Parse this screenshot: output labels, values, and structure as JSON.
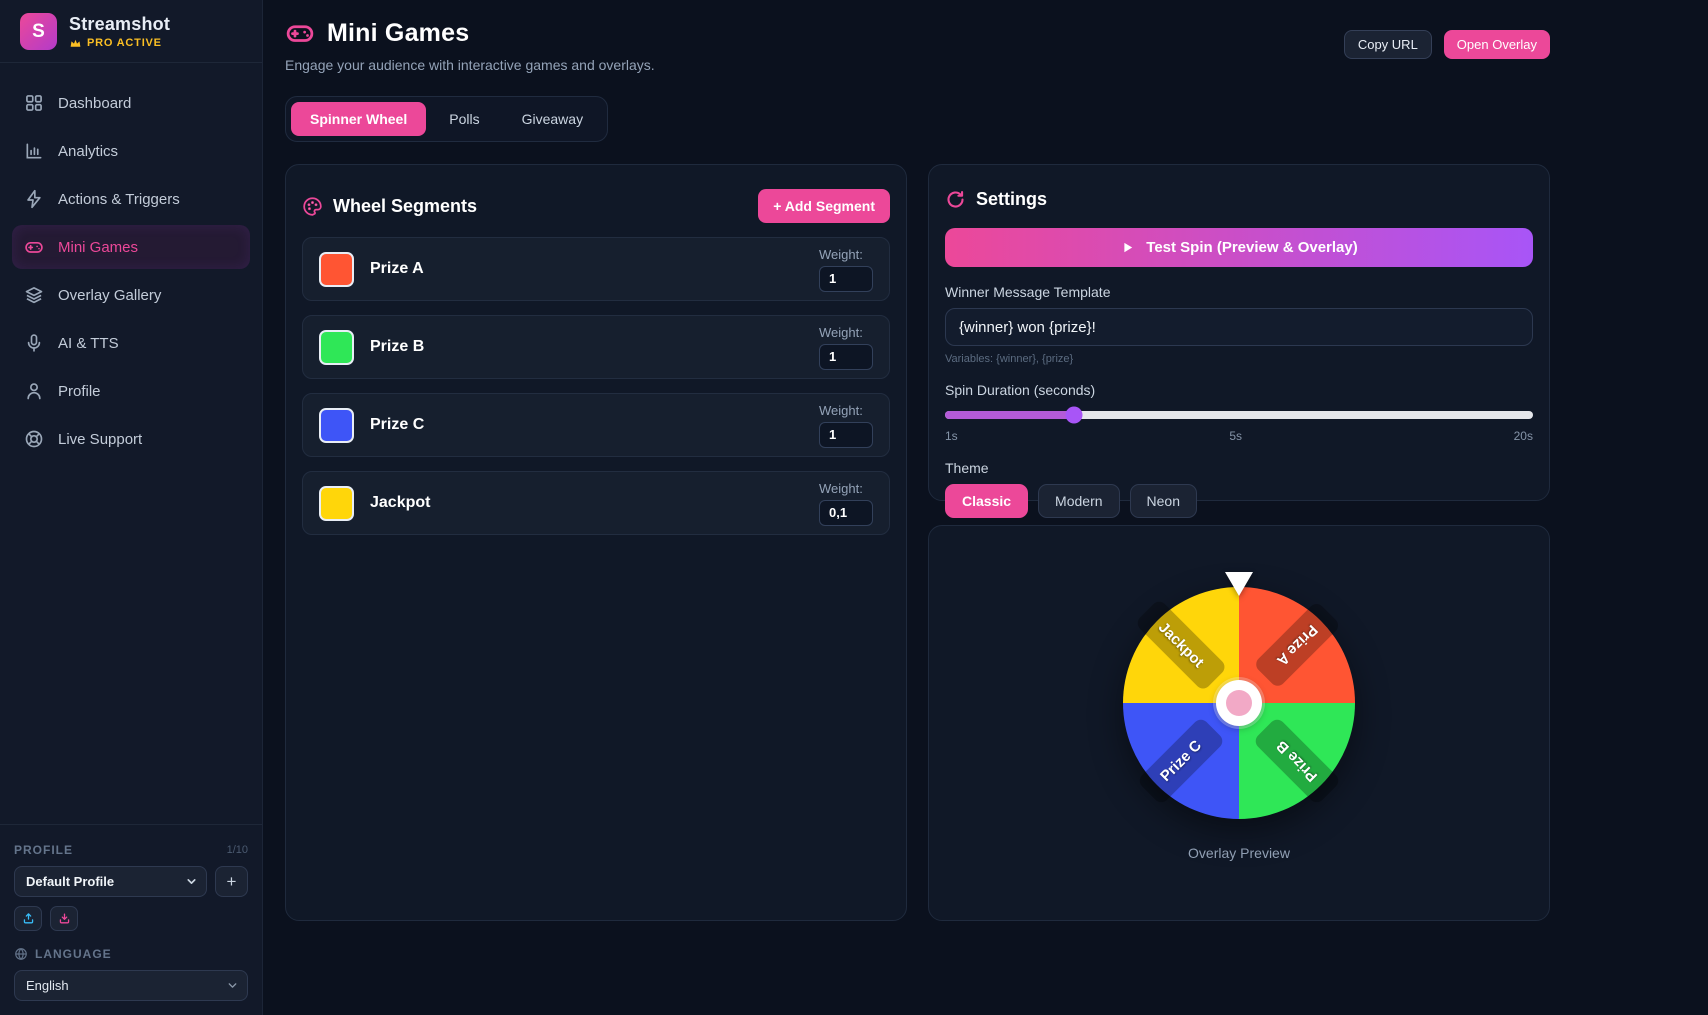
{
  "brand": {
    "name": "Streamshot",
    "logo_letter": "S",
    "badge": "PRO ACTIVE"
  },
  "sidebar": {
    "items": [
      {
        "label": "Dashboard"
      },
      {
        "label": "Analytics"
      },
      {
        "label": "Actions & Triggers"
      },
      {
        "label": "Mini Games",
        "active": true
      },
      {
        "label": "Overlay Gallery"
      },
      {
        "label": "AI & TTS"
      },
      {
        "label": "Profile"
      },
      {
        "label": "Live Support"
      }
    ],
    "profile": {
      "label": "PROFILE",
      "count": "1/10",
      "selected": "Default Profile",
      "add_label": "+"
    },
    "language": {
      "label": "LANGUAGE",
      "selected": "English"
    }
  },
  "header": {
    "title": "Mini Games",
    "subtitle": "Engage your audience with interactive games and overlays.",
    "copy_url_label": "Copy URL",
    "open_overlay_label": "Open Overlay"
  },
  "tabs": {
    "items": [
      {
        "label": "Spinner Wheel",
        "active": true
      },
      {
        "label": "Polls"
      },
      {
        "label": "Giveaway"
      }
    ]
  },
  "segments_panel": {
    "title": "Wheel Segments",
    "add_segment_label": "+ Add Segment",
    "weight_label": "Weight:",
    "segments": [
      {
        "name": "Prize A",
        "color": "#ff5533",
        "weight": "1"
      },
      {
        "name": "Prize B",
        "color": "#2fe757",
        "weight": "1"
      },
      {
        "name": "Prize C",
        "color": "#3e55f7",
        "weight": "1"
      },
      {
        "name": "Jackpot",
        "color": "#ffd60a",
        "weight": "0,1"
      }
    ]
  },
  "settings_panel": {
    "title": "Settings",
    "test_spin_label": "Test Spin (Preview & Overlay)",
    "winner_message": {
      "label": "Winner Message Template",
      "value": "{winner} won {prize}!",
      "hint": "Variables: {winner}, {prize}"
    },
    "spin_duration": {
      "label": "Spin Duration (seconds)",
      "min_label": "1s",
      "mid_label": "5s",
      "max_label": "20s",
      "value_percent": 22
    },
    "theme": {
      "label": "Theme",
      "options": [
        {
          "label": "Classic",
          "active": true
        },
        {
          "label": "Modern"
        },
        {
          "label": "Neon"
        }
      ]
    }
  },
  "preview": {
    "caption": "Overlay Preview",
    "wheel": {
      "type": "pie",
      "slices": [
        {
          "label": "Prize A",
          "color": "#ff5533",
          "position": "top-right"
        },
        {
          "label": "Prize B",
          "color": "#2fe757",
          "position": "bottom-right"
        },
        {
          "label": "Prize C",
          "color": "#3e55f7",
          "position": "bottom-left"
        },
        {
          "label": "Jackpot",
          "color": "#ffd60a",
          "position": "top-left"
        }
      ]
    }
  },
  "colors": {
    "accent_pink": "#ec4899",
    "accent_purple": "#a855f7",
    "gold": "#fbbf24",
    "slider_fill": "#b45bd8"
  }
}
